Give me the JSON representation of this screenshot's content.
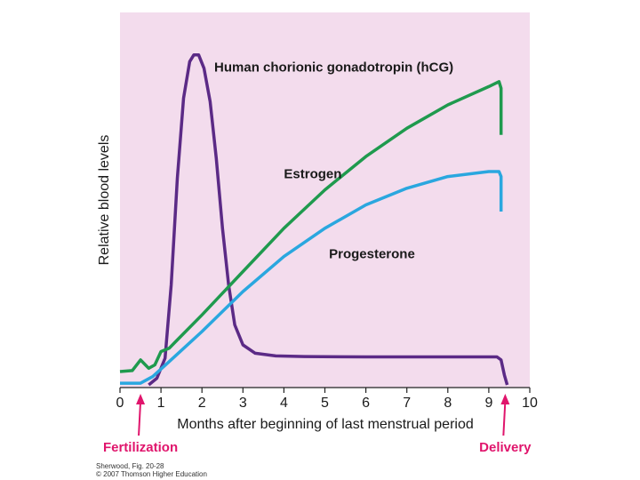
{
  "chart_data": {
    "type": "line",
    "xlabel": "Months after beginning of last menstrual period",
    "ylabel": "Relative blood levels",
    "xlim": [
      0,
      10
    ],
    "ylim": [
      0,
      100
    ],
    "x_ticks": [
      "0",
      "1",
      "2",
      "3",
      "4",
      "5",
      "6",
      "7",
      "8",
      "9",
      "10"
    ],
    "plot_background": "#f3dced",
    "series": [
      {
        "name": "Human chorionic gonadotropin (hCG)",
        "color": "#5b2a86",
        "points": [
          [
            0.7,
            0
          ],
          [
            0.9,
            2
          ],
          [
            1.1,
            8
          ],
          [
            1.25,
            30
          ],
          [
            1.4,
            62
          ],
          [
            1.55,
            86
          ],
          [
            1.7,
            97
          ],
          [
            1.8,
            99
          ],
          [
            1.92,
            99
          ],
          [
            2.05,
            95
          ],
          [
            2.2,
            85
          ],
          [
            2.35,
            68
          ],
          [
            2.5,
            47
          ],
          [
            2.65,
            30
          ],
          [
            2.8,
            18
          ],
          [
            3.0,
            12
          ],
          [
            3.3,
            9.5
          ],
          [
            3.8,
            8.7
          ],
          [
            4.5,
            8.5
          ],
          [
            6,
            8.4
          ],
          [
            8,
            8.4
          ],
          [
            9.2,
            8.4
          ],
          [
            9.3,
            7.5
          ],
          [
            9.38,
            3
          ],
          [
            9.45,
            0
          ]
        ]
      },
      {
        "name": "Estrogen",
        "color": "#1f9a4e",
        "points": [
          [
            0,
            4
          ],
          [
            0.3,
            4.3
          ],
          [
            0.5,
            7.5
          ],
          [
            0.7,
            5
          ],
          [
            0.85,
            6
          ],
          [
            1.0,
            10
          ],
          [
            1.2,
            11
          ],
          [
            1.4,
            13.5
          ],
          [
            2,
            21
          ],
          [
            3,
            34
          ],
          [
            4,
            47
          ],
          [
            5,
            58.5
          ],
          [
            6,
            68.5
          ],
          [
            7,
            77
          ],
          [
            8,
            84
          ],
          [
            9,
            89.5
          ],
          [
            9.25,
            91
          ],
          [
            9.3,
            89
          ],
          [
            9.3,
            75
          ]
        ]
      },
      {
        "name": "Progesterone",
        "color": "#2aa7df",
        "points": [
          [
            0,
            0.5
          ],
          [
            0.5,
            0.5
          ],
          [
            0.8,
            2.5
          ],
          [
            1.2,
            7
          ],
          [
            2,
            16
          ],
          [
            3,
            28
          ],
          [
            4,
            38.5
          ],
          [
            5,
            47
          ],
          [
            6,
            54
          ],
          [
            7,
            59
          ],
          [
            8,
            62.5
          ],
          [
            9,
            64
          ],
          [
            9.25,
            64
          ],
          [
            9.3,
            62.5
          ],
          [
            9.3,
            52
          ]
        ]
      }
    ],
    "events": [
      {
        "name": "Fertilization",
        "x": 0.5,
        "color": "#e0156c"
      },
      {
        "name": "Delivery",
        "x": 9.4,
        "color": "#e0156c"
      }
    ],
    "annotations": [
      {
        "text": "Human chorionic gonadotropin (hCG)",
        "x": 2.3,
        "y": 94
      },
      {
        "text": "Estrogen",
        "x": 4.0,
        "y": 62
      },
      {
        "text": "Progesterone",
        "x": 5.1,
        "y": 38
      }
    ]
  },
  "credit": {
    "line1": "Sherwood, Fig. 20-28",
    "line2": "© 2007 Thomson Higher Education"
  }
}
